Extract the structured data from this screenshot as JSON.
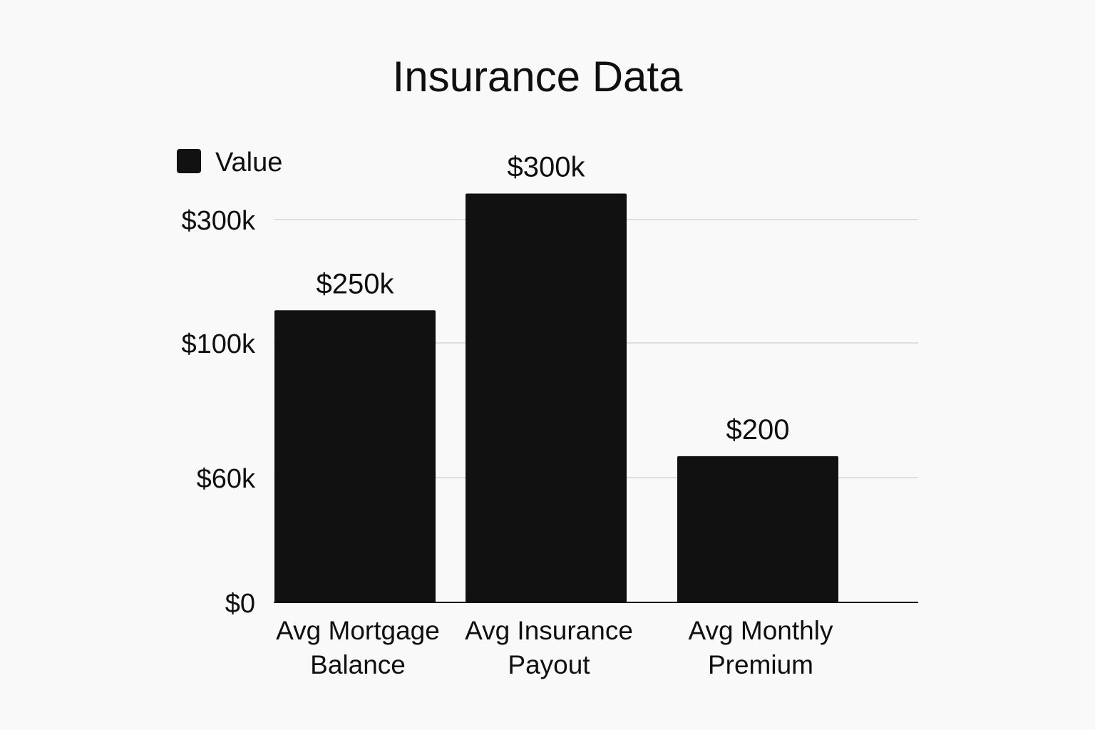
{
  "chart_data": {
    "type": "bar",
    "title": "Insurance Data",
    "categories": [
      [
        "Avg Mortgage",
        "Balance"
      ],
      [
        "Avg Insurance",
        "Payout"
      ],
      [
        "Avg Monthly",
        "Premium"
      ]
    ],
    "series": [
      {
        "name": "Value",
        "values": [
          250000,
          300000,
          200
        ],
        "labels": [
          "$250k",
          "$300k",
          "$200"
        ]
      }
    ],
    "y_ticks": [
      {
        "value": 0,
        "label": "$0"
      },
      {
        "value": 60000,
        "label": "$60k"
      },
      {
        "value": 100000,
        "label": "$100k"
      },
      {
        "value": 300000,
        "label": "$300k"
      }
    ],
    "bar_levels": [
      0.763,
      1.068,
      0.382
    ],
    "grid": true,
    "legend_position": "top-left",
    "colors": {
      "bar": "#111111",
      "background": "#f9f9f9",
      "grid": "#d6d6d6",
      "text": "#0f0f0f"
    }
  }
}
